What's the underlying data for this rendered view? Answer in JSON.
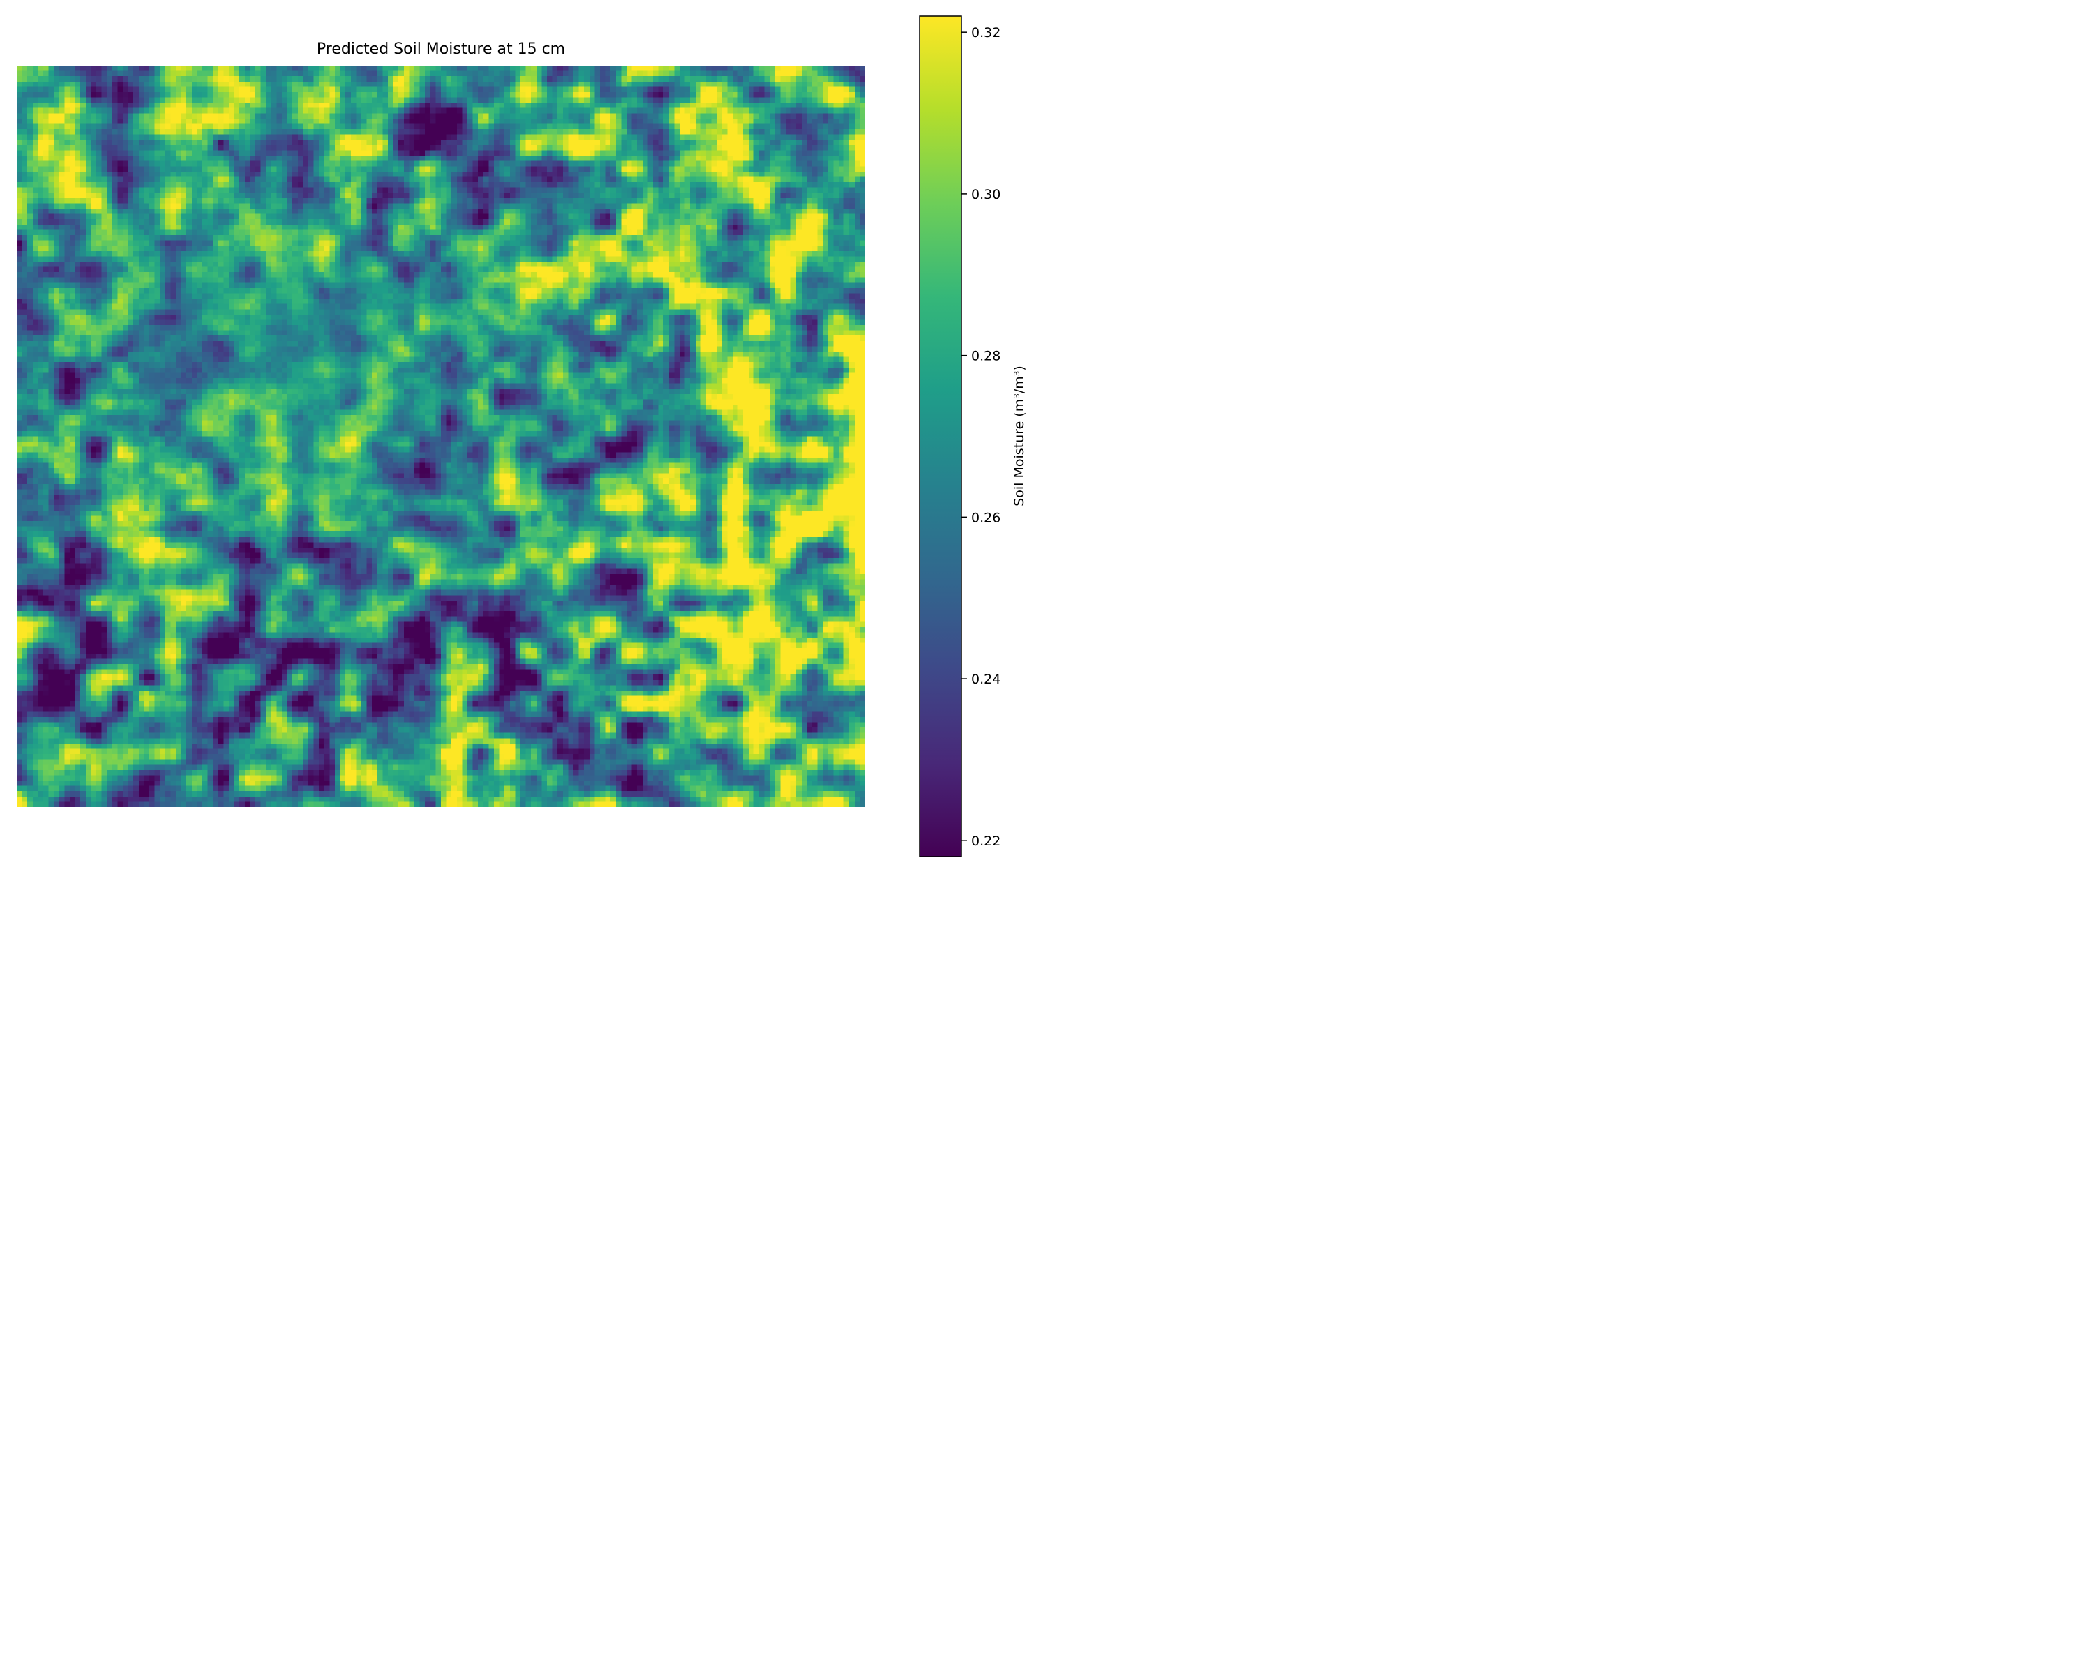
{
  "chart_data": {
    "type": "heatmap",
    "title": "Predicted Soil Moisture at 15 cm",
    "colormap": "viridis",
    "grid": false,
    "axes_visible": false,
    "grid_shape": [
      140,
      160
    ],
    "value_range": [
      0.218,
      0.322
    ],
    "colorbar": {
      "label": "Soil Moisture (m³/m³)",
      "position": "right",
      "ticks": [
        0.22,
        0.24,
        0.26,
        0.28,
        0.3,
        0.32
      ],
      "tick_labels": [
        "0.22",
        "0.24",
        "0.26",
        "0.28",
        "0.30",
        "0.32"
      ]
    },
    "pattern": {
      "regions": [
        {
          "area": "top-left and center-left",
          "level": "mid (0.27–0.29)"
        },
        {
          "area": "right half",
          "level": "high (0.30–0.32)"
        },
        {
          "area": "lower-left",
          "level": "mixed, many dry patches (0.22–0.25)"
        }
      ]
    }
  },
  "colors": {
    "viridis_stops": [
      "#440154",
      "#482878",
      "#3e4989",
      "#31688e",
      "#26828e",
      "#1f9e89",
      "#35b779",
      "#6ece58",
      "#b5de2b",
      "#fde725"
    ]
  }
}
